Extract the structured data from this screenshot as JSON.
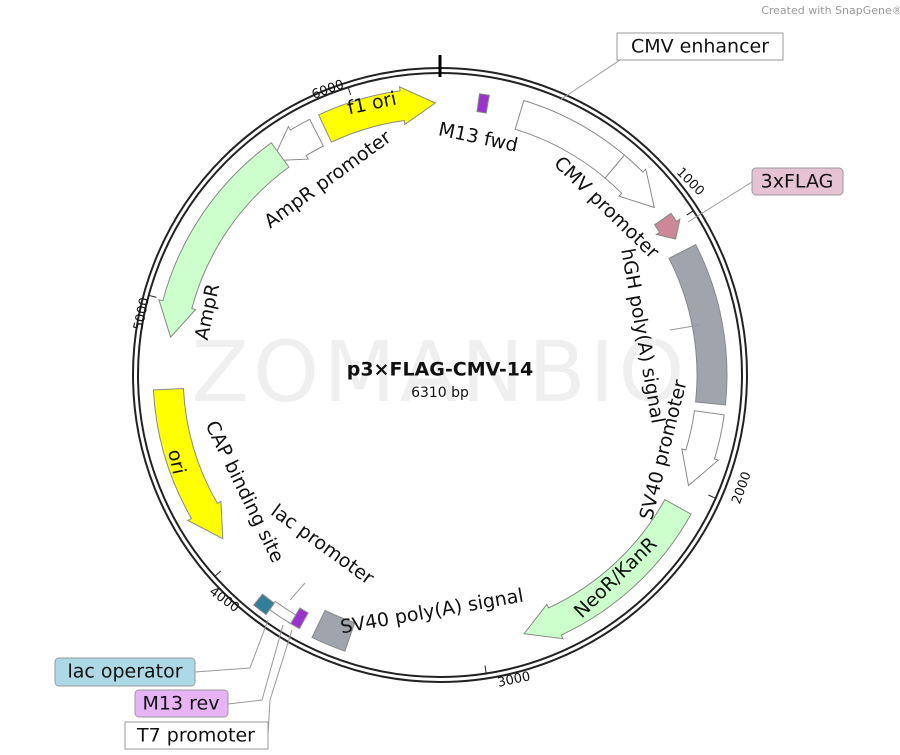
{
  "credit": "Created with SnapGene®",
  "watermark": "ZOMANBIO",
  "plasmid": {
    "name": "p3×FLAG-CMV-14",
    "size": "6310 bp"
  },
  "ticks": [
    "1000",
    "2000",
    "3000",
    "4000",
    "5000",
    "6000"
  ],
  "features": [
    {
      "label": "CMV enhancer"
    },
    {
      "label": "3xFLAG"
    },
    {
      "label": "lac operator"
    },
    {
      "label": "M13 rev"
    },
    {
      "label": "T7 promoter"
    },
    {
      "label": "f1 ori"
    },
    {
      "label": "M13 fwd"
    },
    {
      "label": "AmpR promoter"
    },
    {
      "label": "AmpR"
    },
    {
      "label": "CMV promoter"
    },
    {
      "label": "hGH poly(A) signal"
    },
    {
      "label": "SV40 promoter"
    },
    {
      "label": "NeoR/KanR"
    },
    {
      "label": "SV40 poly(A) signal"
    },
    {
      "label": "lac promoter"
    },
    {
      "label": "CAP binding site"
    },
    {
      "label": "ori"
    }
  ]
}
